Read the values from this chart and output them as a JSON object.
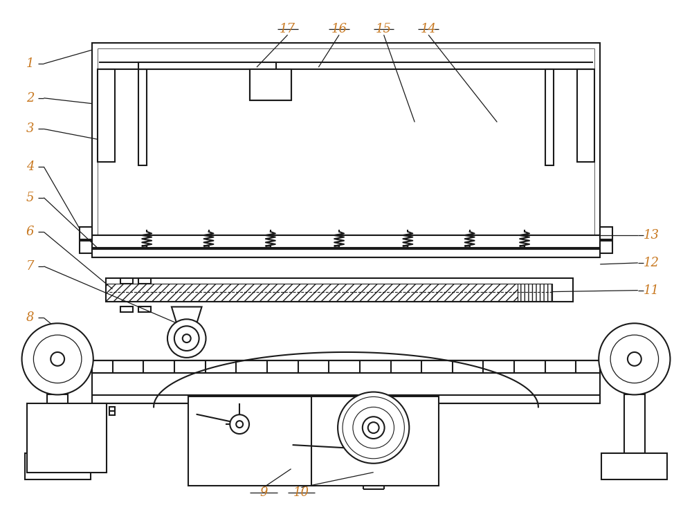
{
  "bg_color": "#ffffff",
  "line_color": "#1a1a1a",
  "label_color": "#c87820",
  "fig_width": 10.0,
  "fig_height": 7.4
}
